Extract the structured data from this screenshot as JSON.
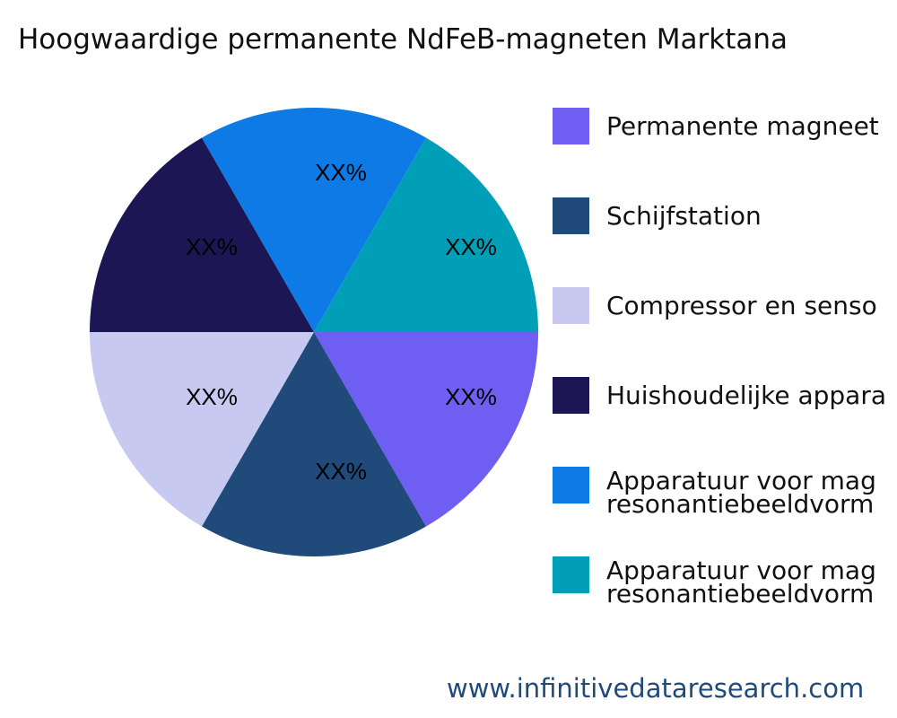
{
  "title": "Hoogwaardige permanente NdFeB-magneten Marktana",
  "watermark": "www.infinitivedataresearch.com",
  "chart_data": {
    "type": "pie",
    "title": "Hoogwaardige permanente NdFeB-magneten Marktana",
    "categories": [
      "Permanente magneet",
      "Schijfstation",
      "Compressor en senso",
      "Huishoudelijke appara",
      "Apparatuur voor mag\nresonantiebeeldvorm",
      "Apparatuur voor mag\nresonantiebeeldvorm"
    ],
    "values": [
      1,
      1,
      1,
      1,
      1,
      1
    ],
    "data_labels": [
      "XX%",
      "XX%",
      "XX%",
      "XX%",
      "XX%",
      "XX%"
    ],
    "colors": [
      "#6E5FF2",
      "#1F4A7A",
      "#C8C9F0",
      "#1D1654",
      "#0E7AE6",
      "#009FB8"
    ],
    "legend": "right"
  }
}
